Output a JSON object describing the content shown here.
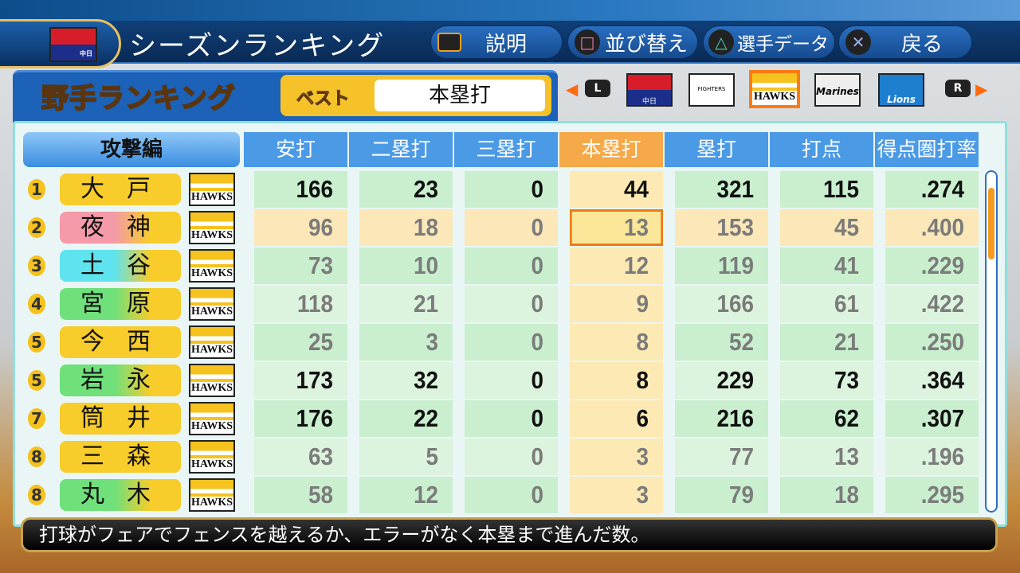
{
  "header": {
    "title": "シーズンランキング",
    "team_badge": "中日",
    "buttons": [
      {
        "label": "説明",
        "icon": "touchpad-icon"
      },
      {
        "label": "並び替え",
        "icon": "square-icon"
      },
      {
        "label": "選手データ",
        "icon": "triangle-icon"
      },
      {
        "label": "戻る",
        "icon": "cross-icon"
      }
    ]
  },
  "panel": {
    "title": "野手ランキング",
    "best_label": "ベスト",
    "best_value": "本塁打"
  },
  "teams": {
    "prev": "L",
    "next": "R",
    "logos": [
      {
        "label": "中日"
      },
      {
        "label": "FIGHTERS"
      },
      {
        "label": "HAWKS",
        "selected": true
      },
      {
        "label": "Marines"
      },
      {
        "label": "Lions"
      }
    ]
  },
  "table": {
    "category": "攻撃編",
    "columns": [
      "安打",
      "二塁打",
      "三塁打",
      "本塁打",
      "塁打",
      "打点",
      "得点圏打率"
    ],
    "sorted_column": 3,
    "rows": [
      {
        "rank": "1",
        "name": "大戸",
        "team": "HAWKS",
        "values": [
          "166",
          "23",
          "0",
          "44",
          "321",
          "115",
          ".274"
        ],
        "pill": "#f8cc2a",
        "bold": true
      },
      {
        "rank": "2",
        "name": "夜神",
        "team": "HAWKS",
        "values": [
          "96",
          "18",
          "0",
          "13",
          "153",
          "45",
          ".400"
        ],
        "pill": "#f49aa8",
        "bold": false,
        "selected": true
      },
      {
        "rank": "3",
        "name": "土谷",
        "team": "HAWKS",
        "values": [
          "73",
          "10",
          "0",
          "12",
          "119",
          "41",
          ".229"
        ],
        "pill": "#5fe3ee",
        "bold": false
      },
      {
        "rank": "4",
        "name": "宮原",
        "team": "HAWKS",
        "values": [
          "118",
          "21",
          "0",
          "9",
          "166",
          "61",
          ".422"
        ],
        "pill": "#6fe07a",
        "bold": false
      },
      {
        "rank": "5",
        "name": "今西",
        "team": "HAWKS",
        "values": [
          "25",
          "3",
          "0",
          "8",
          "52",
          "21",
          ".250"
        ],
        "pill": "#f8cc2a",
        "bold": false
      },
      {
        "rank": "5",
        "name": "岩永",
        "team": "HAWKS",
        "values": [
          "173",
          "32",
          "0",
          "8",
          "229",
          "73",
          ".364"
        ],
        "pill": "#6fe07a",
        "bold": true
      },
      {
        "rank": "7",
        "name": "筒井",
        "team": "HAWKS",
        "values": [
          "176",
          "22",
          "0",
          "6",
          "216",
          "62",
          ".307"
        ],
        "pill": "#f8cc2a",
        "bold": true
      },
      {
        "rank": "8",
        "name": "三森",
        "team": "HAWKS",
        "values": [
          "63",
          "5",
          "0",
          "3",
          "77",
          "13",
          ".196"
        ],
        "pill": "#f8cc2a",
        "bold": false
      },
      {
        "rank": "8",
        "name": "丸木",
        "team": "HAWKS",
        "values": [
          "58",
          "12",
          "0",
          "3",
          "79",
          "18",
          ".295"
        ],
        "pill": "#6fe07a",
        "bold": false
      }
    ]
  },
  "message": "打球がフェアでフェンスを越えるか、エラーがなく本塁まで進んだ数。",
  "colors": {
    "accent": "#f59a20",
    "header_blue": "#4b9ae6",
    "row_green": "#c9efcf",
    "row_selected": "#fbe7b8",
    "sorted_col": "#fde9b4"
  }
}
